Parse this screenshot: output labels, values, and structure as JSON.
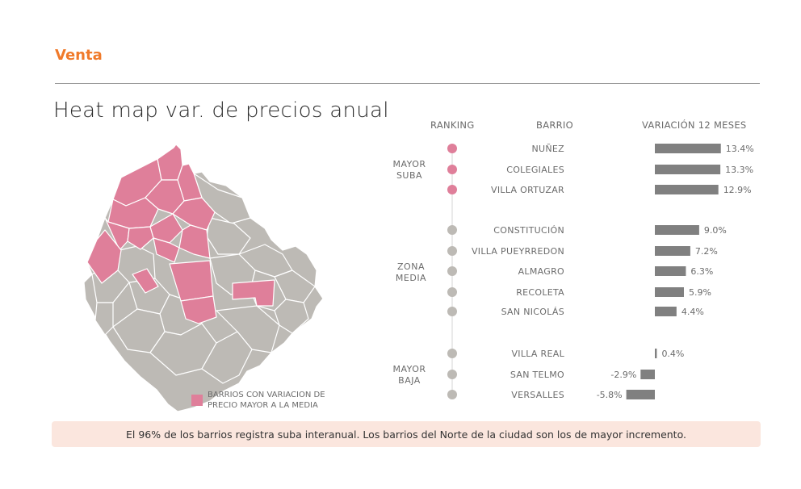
{
  "header": {
    "section_title": "Venta",
    "title": "Heat map var. de precios anual"
  },
  "columns": {
    "ranking": "RANKING",
    "barrio": "BARRIO",
    "variation": "VARIACIÓN 12 MESES"
  },
  "groups": [
    {
      "line1": "MAYOR",
      "line2": "SUBA"
    },
    {
      "line1": "ZONA",
      "line2": "MEDIA"
    },
    {
      "line1": "MAYOR",
      "line2": "BAJA"
    }
  ],
  "legend": {
    "line1": "BARRIOS CON VARIACION DE",
    "line2": "PRECIO MAYOR A LA MEDIA"
  },
  "footer": {
    "text": "El 96% de los barrios registra suba interanual. Los barrios del Norte de la ciudad son los de mayor incremento."
  },
  "colors": {
    "highlight": "#df7f9a",
    "neutral": "#bdbab5",
    "bar": "#808080",
    "accent": "#f07a2a"
  },
  "chart_data": {
    "type": "bar",
    "orientation": "horizontal",
    "categories": [
      "NUÑEZ",
      "COLEGIALES",
      "VILLA ORTUZAR",
      "CONSTITUCIÓN",
      "VILLA PUEYRREDON",
      "ALMAGRO",
      "RECOLETA",
      "SAN NICOLÁS",
      "VILLA REAL",
      "SAN TELMO",
      "VERSALLES"
    ],
    "values": [
      13.4,
      13.3,
      12.9,
      9.0,
      7.2,
      6.3,
      5.9,
      4.4,
      0.4,
      -2.9,
      -5.8
    ],
    "value_labels": [
      "13.4%",
      "13.3%",
      "12.9%",
      "9.0%",
      "7.2%",
      "6.3%",
      "5.9%",
      "4.4%",
      "0.4%",
      "-2.9%",
      "-5.8%"
    ],
    "groups": [
      "MAYOR SUBA",
      "MAYOR SUBA",
      "MAYOR SUBA",
      "ZONA MEDIA",
      "ZONA MEDIA",
      "ZONA MEDIA",
      "ZONA MEDIA",
      "ZONA MEDIA",
      "MAYOR BAJA",
      "MAYOR BAJA",
      "MAYOR BAJA"
    ],
    "highlighted": [
      true,
      true,
      true,
      false,
      false,
      false,
      false,
      false,
      false,
      false,
      false
    ],
    "unit": "%"
  }
}
